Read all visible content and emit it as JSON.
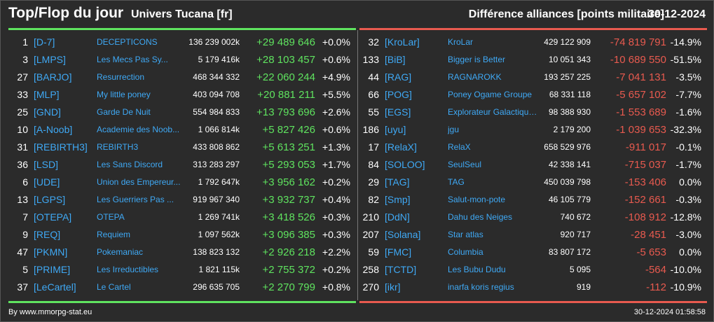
{
  "header": {
    "title": "Top/Flop du jour",
    "subtitle": "Univers Tucana [fr]",
    "right_title": "Différence alliances [points militaire]",
    "date": "30-12-2024"
  },
  "colors": {
    "positive": "#5fe35f",
    "negative": "#e85a4f",
    "link": "#3fa9f5",
    "background": "#2b2b2b"
  },
  "top": [
    {
      "rank": "1",
      "tag": "[D-7]",
      "name": "DECEPTICONS",
      "total": "136 239 002k",
      "diff": "+29 489 646",
      "pct": "+0.0%"
    },
    {
      "rank": "3",
      "tag": "[LMPS]",
      "name": "Les Mecs Pas Sy...",
      "total": "5 179 416k",
      "diff": "+28 103 457",
      "pct": "+0.6%"
    },
    {
      "rank": "27",
      "tag": "[BARJO]",
      "name": "Resurrection",
      "total": "468 344 332",
      "diff": "+22 060 244",
      "pct": "+4.9%"
    },
    {
      "rank": "33",
      "tag": "[MLP]",
      "name": "My little poney",
      "total": "403 094 708",
      "diff": "+20 881 211",
      "pct": "+5.5%"
    },
    {
      "rank": "25",
      "tag": "[GND]",
      "name": "Garde De Nuit",
      "total": "554 984 833",
      "diff": "+13 793 696",
      "pct": "+2.6%"
    },
    {
      "rank": "10",
      "tag": "[A-Noob]",
      "name": "Academie des Noob...",
      "total": "1 066 814k",
      "diff": "+5 827 426",
      "pct": "+0.6%"
    },
    {
      "rank": "31",
      "tag": "[REBIRTH3]",
      "name": "REBIRTH3",
      "total": "433 808 862",
      "diff": "+5 613 251",
      "pct": "+1.3%"
    },
    {
      "rank": "36",
      "tag": "[LSD]",
      "name": "Les Sans Discord",
      "total": "313 283 297",
      "diff": "+5 293 053",
      "pct": "+1.7%"
    },
    {
      "rank": "6",
      "tag": "[UDE]",
      "name": "Union des Empereur...",
      "total": "1 792 647k",
      "diff": "+3 956 162",
      "pct": "+0.2%"
    },
    {
      "rank": "13",
      "tag": "[LGPS]",
      "name": "Les Guerriers Pas ...",
      "total": "919 967 340",
      "diff": "+3 932 737",
      "pct": "+0.4%"
    },
    {
      "rank": "7",
      "tag": "[OTEPA]",
      "name": "OTEPA",
      "total": "1 269 741k",
      "diff": "+3 418 526",
      "pct": "+0.3%"
    },
    {
      "rank": "9",
      "tag": "[REQ]",
      "name": "Requiem",
      "total": "1 097 562k",
      "diff": "+3 096 385",
      "pct": "+0.3%"
    },
    {
      "rank": "47",
      "tag": "[PKMN]",
      "name": "Pokemaniac",
      "total": "138 823 132",
      "diff": "+2 926 218",
      "pct": "+2.2%"
    },
    {
      "rank": "5",
      "tag": "[PRIME]",
      "name": "Les Irreductibles",
      "total": "1 821 115k",
      "diff": "+2 755 372",
      "pct": "+0.2%"
    },
    {
      "rank": "37",
      "tag": "[LeCartel]",
      "name": "Le Cartel",
      "total": "296 635 705",
      "diff": "+2 270 799",
      "pct": "+0.8%"
    }
  ],
  "flop": [
    {
      "rank": "32",
      "tag": "[KroLar]",
      "name": "KroLar",
      "total": "429 122 909",
      "diff": "-74 819 791",
      "pct": "-14.9%"
    },
    {
      "rank": "133",
      "tag": "[BiB]",
      "name": "Bigger is Better",
      "total": "10 051 343",
      "diff": "-10 689 550",
      "pct": "-51.5%"
    },
    {
      "rank": "44",
      "tag": "[RAG]",
      "name": "RAGNAROKK",
      "total": "193 257 225",
      "diff": "-7 041 131",
      "pct": "-3.5%"
    },
    {
      "rank": "66",
      "tag": "[POG]",
      "name": "Poney Ogame Groupe",
      "total": "68 331 118",
      "diff": "-5 657 102",
      "pct": "-7.7%"
    },
    {
      "rank": "55",
      "tag": "[EGS]",
      "name": "Explorateur Galactique S",
      "total": "98 388 930",
      "diff": "-1 553 689",
      "pct": "-1.6%"
    },
    {
      "rank": "186",
      "tag": "[uyu]",
      "name": "jgu",
      "total": "2 179 200",
      "diff": "-1 039 653",
      "pct": "-32.3%"
    },
    {
      "rank": "17",
      "tag": "[RelaX]",
      "name": "RelaX",
      "total": "658 529 976",
      "diff": "-911 017",
      "pct": "-0.1%"
    },
    {
      "rank": "84",
      "tag": "[SOLOO]",
      "name": "SeulSeul",
      "total": "42 338 141",
      "diff": "-715 037",
      "pct": "-1.7%"
    },
    {
      "rank": "29",
      "tag": "[TAG]",
      "name": "TAG",
      "total": "450 039 798",
      "diff": "-153 406",
      "pct": "0.0%"
    },
    {
      "rank": "82",
      "tag": "[Smp]",
      "name": "Salut-mon-pote",
      "total": "46 105 779",
      "diff": "-152 661",
      "pct": "-0.3%"
    },
    {
      "rank": "210",
      "tag": "[DdN]",
      "name": "Dahu des Neiges",
      "total": "740 672",
      "diff": "-108 912",
      "pct": "-12.8%"
    },
    {
      "rank": "207",
      "tag": "[Solana]",
      "name": "Star atlas",
      "total": "920 717",
      "diff": "-28 451",
      "pct": "-3.0%"
    },
    {
      "rank": "59",
      "tag": "[FMC]",
      "name": "Columbia",
      "total": "83 807 172",
      "diff": "-5 653",
      "pct": "0.0%"
    },
    {
      "rank": "258",
      "tag": "[TCTD]",
      "name": "Les Bubu Dudu",
      "total": "5 095",
      "diff": "-564",
      "pct": "-10.0%"
    },
    {
      "rank": "270",
      "tag": "[ikr]",
      "name": "inarfa koris regius",
      "total": "919",
      "diff": "-112",
      "pct": "-10.9%"
    }
  ],
  "footer": {
    "source": "By www.mmorpg-stat.eu",
    "timestamp": "30-12-2024 01:58:58"
  }
}
